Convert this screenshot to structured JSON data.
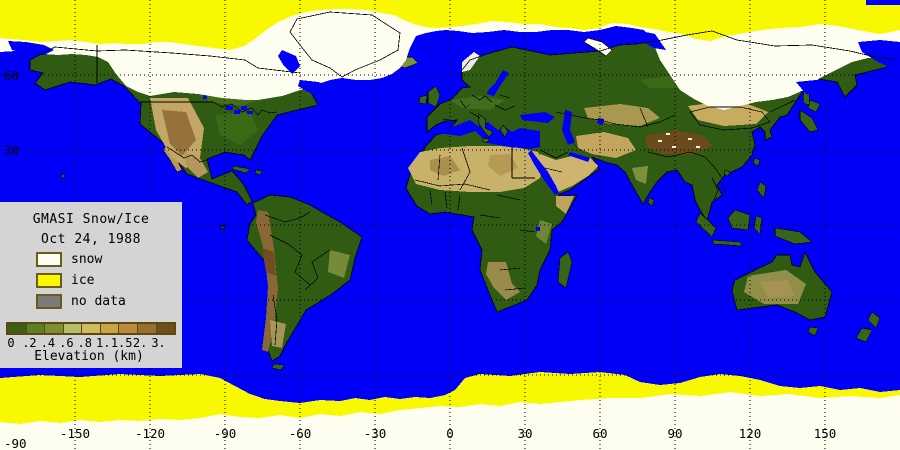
{
  "map": {
    "title": "GMASI Snow/Ice",
    "date": "Oct 24, 1988"
  },
  "legend": {
    "panel_color": "#D4D4D4",
    "swatch_border": "#6E5A18",
    "items": [
      {
        "key": "snow",
        "label": "snow",
        "color": "#FFFEF2"
      },
      {
        "key": "ice",
        "label": "ice",
        "color": "#F8F800"
      },
      {
        "key": "no_data",
        "label": "no data",
        "color": "#7B7B7B"
      }
    ],
    "elevation": {
      "title": "Elevation (km)",
      "tick_labels": [
        "0",
        ".2",
        ".4",
        ".6",
        ".8",
        "1.",
        "1.5",
        "2.",
        "3."
      ],
      "colors": [
        "#3C5E14",
        "#5C7E24",
        "#7E8F33",
        "#B5BD6A",
        "#CDBD5C",
        "#C9A444",
        "#BD8840",
        "#96702C",
        "#6E4F1C"
      ]
    }
  },
  "axes": {
    "lon_ticks": [
      {
        "label": "-150",
        "lon": -150
      },
      {
        "label": "-120",
        "lon": -120
      },
      {
        "label": "-90",
        "lon": -90
      },
      {
        "label": "-60",
        "lon": -60
      },
      {
        "label": "-30",
        "lon": -30
      },
      {
        "label": "0",
        "lon": 0
      },
      {
        "label": "30",
        "lon": 30
      },
      {
        "label": "60",
        "lon": 60
      },
      {
        "label": "90",
        "lon": 90
      },
      {
        "label": "120",
        "lon": 120
      },
      {
        "label": "150",
        "lon": 150
      }
    ],
    "lat_ticks": [
      {
        "label": "60",
        "lat": 60
      },
      {
        "label": "30",
        "lat": 30
      },
      {
        "label": "-90",
        "lat": -90
      }
    ],
    "grid_lons": [
      -150,
      -120,
      -90,
      -60,
      -30,
      0,
      30,
      60,
      90,
      120,
      150
    ],
    "grid_lats": [
      60,
      30,
      0,
      -30,
      -60
    ]
  },
  "colors": {
    "ocean": "#0000F8",
    "snow": "#FDFDF0",
    "ice": "#F8F800",
    "no_data": "#7B7B7B",
    "grid": "#000000",
    "land_green": "#2F5C12"
  }
}
